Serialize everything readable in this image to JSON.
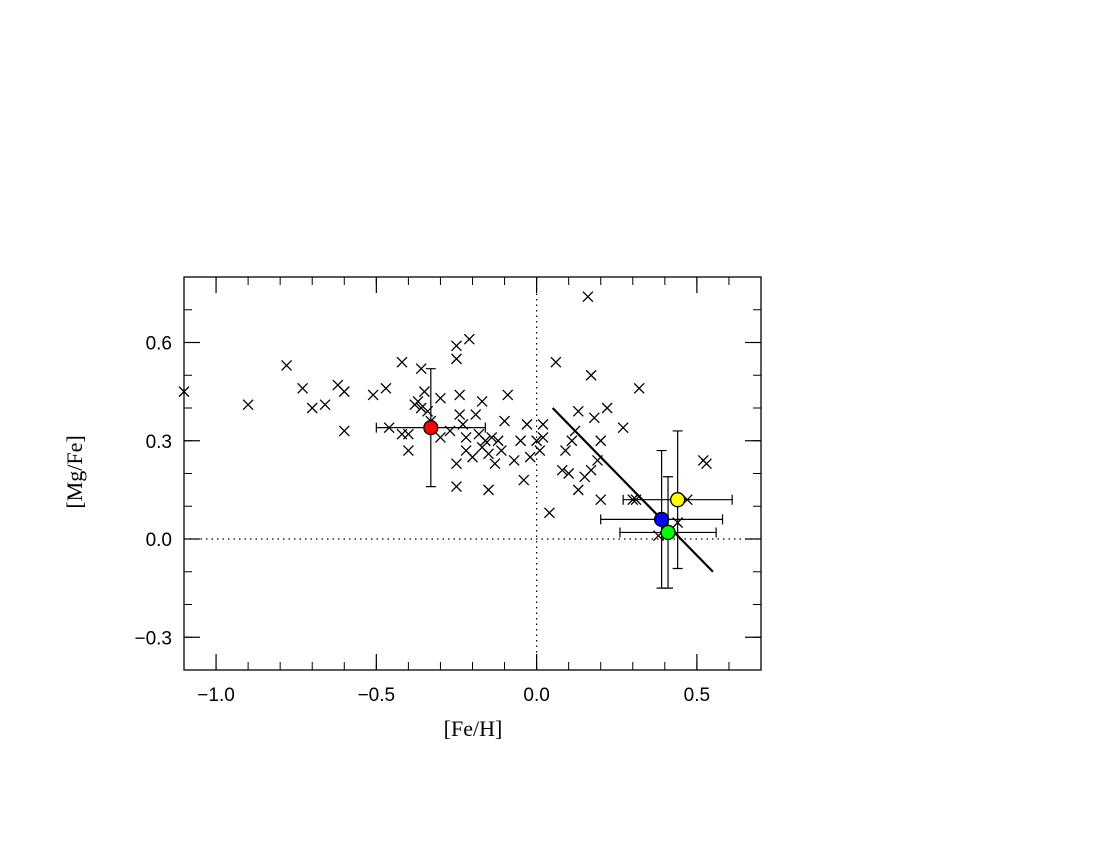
{
  "chart_data": {
    "type": "scatter",
    "xlabel": "[Fe/H]",
    "ylabel": "[Mg/Fe]",
    "xlim": [
      -1.1,
      0.7
    ],
    "ylim": [
      -0.4,
      0.8
    ],
    "xticks": [
      {
        "value": -1.0,
        "label": "−1.0"
      },
      {
        "value": -0.5,
        "label": "−0.5"
      },
      {
        "value": 0.0,
        "label": "0.0"
      },
      {
        "value": 0.5,
        "label": "0.5"
      }
    ],
    "yticks": [
      {
        "value": -0.3,
        "label": "−0.3"
      },
      {
        "value": 0.0,
        "label": "0.0"
      },
      {
        "value": 0.3,
        "label": "0.3"
      },
      {
        "value": 0.6,
        "label": "0.6"
      }
    ],
    "x_minor_step": 0.1,
    "y_minor_step": 0.1,
    "reference_lines": [
      {
        "axis": "x",
        "value": 0.0,
        "style": "dotted"
      },
      {
        "axis": "y",
        "value": 0.0,
        "style": "dotted"
      }
    ],
    "comparison_stars": [
      [
        -1.1,
        0.45
      ],
      [
        -0.9,
        0.41
      ],
      [
        -0.78,
        0.53
      ],
      [
        -0.73,
        0.46
      ],
      [
        -0.7,
        0.4
      ],
      [
        -0.66,
        0.41
      ],
      [
        -0.62,
        0.47
      ],
      [
        -0.6,
        0.45
      ],
      [
        -0.6,
        0.33
      ],
      [
        -0.51,
        0.44
      ],
      [
        -0.47,
        0.46
      ],
      [
        -0.46,
        0.34
      ],
      [
        -0.42,
        0.54
      ],
      [
        -0.42,
        0.32
      ],
      [
        -0.4,
        0.32
      ],
      [
        -0.4,
        0.27
      ],
      [
        -0.38,
        0.41
      ],
      [
        -0.37,
        0.42
      ],
      [
        -0.36,
        0.4
      ],
      [
        -0.36,
        0.52
      ],
      [
        -0.35,
        0.45
      ],
      [
        -0.34,
        0.39
      ],
      [
        -0.33,
        0.36
      ],
      [
        -0.3,
        0.43
      ],
      [
        -0.3,
        0.31
      ],
      [
        -0.27,
        0.33
      ],
      [
        -0.25,
        0.59
      ],
      [
        -0.25,
        0.55
      ],
      [
        -0.24,
        0.44
      ],
      [
        -0.24,
        0.38
      ],
      [
        -0.25,
        0.23
      ],
      [
        -0.25,
        0.16
      ],
      [
        -0.23,
        0.35
      ],
      [
        -0.22,
        0.27
      ],
      [
        -0.22,
        0.31
      ],
      [
        -0.21,
        0.61
      ],
      [
        -0.2,
        0.25
      ],
      [
        -0.19,
        0.38
      ],
      [
        -0.18,
        0.32
      ],
      [
        -0.17,
        0.42
      ],
      [
        -0.17,
        0.28
      ],
      [
        -0.16,
        0.3
      ],
      [
        -0.15,
        0.26
      ],
      [
        -0.15,
        0.15
      ],
      [
        -0.14,
        0.31
      ],
      [
        -0.13,
        0.23
      ],
      [
        -0.12,
        0.3
      ],
      [
        -0.11,
        0.27
      ],
      [
        -0.1,
        0.36
      ],
      [
        -0.09,
        0.44
      ],
      [
        -0.07,
        0.24
      ],
      [
        -0.05,
        0.3
      ],
      [
        -0.04,
        0.18
      ],
      [
        -0.03,
        0.35
      ],
      [
        -0.02,
        0.25
      ],
      [
        0.0,
        0.3
      ],
      [
        0.01,
        0.27
      ],
      [
        0.02,
        0.31
      ],
      [
        0.02,
        0.35
      ],
      [
        0.04,
        0.08
      ],
      [
        0.06,
        0.54
      ],
      [
        0.08,
        0.21
      ],
      [
        0.09,
        0.27
      ],
      [
        0.1,
        0.2
      ],
      [
        0.11,
        0.3
      ],
      [
        0.12,
        0.33
      ],
      [
        0.13,
        0.39
      ],
      [
        0.13,
        0.15
      ],
      [
        0.15,
        0.19
      ],
      [
        0.16,
        0.74
      ],
      [
        0.17,
        0.5
      ],
      [
        0.17,
        0.21
      ],
      [
        0.18,
        0.37
      ],
      [
        0.19,
        0.24
      ],
      [
        0.2,
        0.3
      ],
      [
        0.2,
        0.12
      ],
      [
        0.22,
        0.4
      ],
      [
        0.27,
        0.34
      ],
      [
        0.3,
        0.12
      ],
      [
        0.31,
        0.12
      ],
      [
        0.32,
        0.46
      ],
      [
        0.38,
        0.01
      ],
      [
        0.44,
        0.05
      ],
      [
        0.47,
        0.12
      ],
      [
        0.52,
        0.24
      ],
      [
        0.53,
        0.23
      ]
    ],
    "highlighted": [
      {
        "x": -0.33,
        "y": 0.34,
        "xerr": 0.17,
        "yerr": 0.18,
        "color": "#ff0000"
      },
      {
        "x": 0.44,
        "y": 0.12,
        "xerr": 0.17,
        "yerr": 0.21,
        "color": "#ffff00"
      },
      {
        "x": 0.39,
        "y": 0.06,
        "xerr": 0.19,
        "yerr": 0.21,
        "color": "#0000ff"
      },
      {
        "x": 0.41,
        "y": 0.02,
        "xerr": 0.15,
        "yerr": 0.17,
        "color": "#00ff00"
      }
    ],
    "fit_line": {
      "x": [
        0.05,
        0.55
      ],
      "y": [
        0.4,
        -0.1
      ]
    },
    "grid": false
  }
}
